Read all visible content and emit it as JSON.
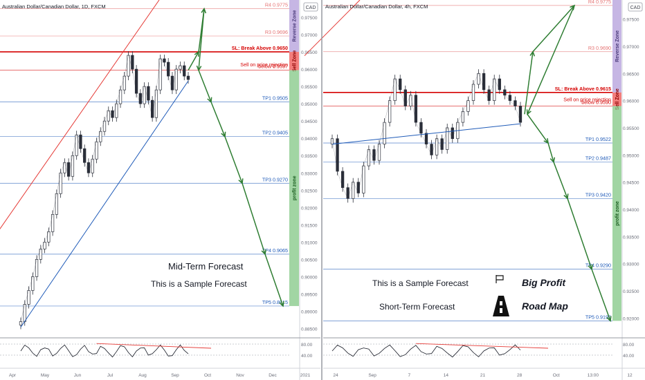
{
  "chart_data": [
    {
      "type": "line",
      "title": "Australian Dollar/Canadian Dollar, 1D, FXCM",
      "currency_badge": "CAD",
      "x_tick_labels": [
        "Apr",
        "May",
        "Jun",
        "Jul",
        "Aug",
        "Sep",
        "Oct",
        "Nov",
        "Dec",
        "2021"
      ],
      "y_tick_labels": [
        "0.97500",
        "0.97000",
        "0.96500",
        "0.96000",
        "0.95500",
        "0.95000",
        "0.94500",
        "0.94000",
        "0.93500",
        "0.93000",
        "0.92500",
        "0.92000",
        "0.91500",
        "0.91000",
        "0.90500",
        "0.90000",
        "0.89500",
        "0.89000",
        "0.88500"
      ],
      "ylim": [
        0.8825,
        0.98
      ],
      "levels": [
        {
          "label": "R4 0.9775",
          "value": 0.9775,
          "color": "#e57373"
        },
        {
          "label": "R3 0.9696",
          "value": 0.9696,
          "color": "#e57373"
        },
        {
          "label": "SL: Break Above 0.9650",
          "value": 0.965,
          "color": "#d50000"
        },
        {
          "label": "Sell on price rejection",
          "value": 0.961,
          "color": "#d50000"
        },
        {
          "label": "below 0.9597",
          "value": 0.9597,
          "color": "#d50000"
        },
        {
          "label": "TP1 0.9505",
          "value": 0.9505,
          "color": "#1e5ab8"
        },
        {
          "label": "TP2 0.9405",
          "value": 0.9405,
          "color": "#1e5ab8"
        },
        {
          "label": "TP3 0.9270",
          "value": 0.927,
          "color": "#1e5ab8"
        },
        {
          "label": "TP4 0.9065",
          "value": 0.9065,
          "color": "#1e5ab8"
        },
        {
          "label": "TP5 0.8915",
          "value": 0.8915,
          "color": "#1e5ab8"
        }
      ],
      "zones": [
        {
          "label": "Reverse Zone",
          "from": 0.965,
          "to": 0.98,
          "color": "#b39ddb"
        },
        {
          "label": "Sell Zone",
          "from": 0.9597,
          "to": 0.965,
          "color": "#ef5350"
        },
        {
          "label": "profit zone",
          "from": 0.8915,
          "to": 0.9597,
          "color": "#81c784"
        }
      ],
      "annotations": [
        "Mid-Term Forecast",
        "This is a Sample Forecast"
      ],
      "close_series": [
        0.887,
        0.892,
        0.896,
        0.9,
        0.905,
        0.908,
        0.91,
        0.913,
        0.918,
        0.924,
        0.93,
        0.933,
        0.929,
        0.935,
        0.941,
        0.937,
        0.933,
        0.93,
        0.934,
        0.939,
        0.942,
        0.945,
        0.948,
        0.946,
        0.95,
        0.954,
        0.958,
        0.964,
        0.96,
        0.953,
        0.95,
        0.955,
        0.951,
        0.946,
        0.954,
        0.963,
        0.962,
        0.958,
        0.954,
        0.96,
        0.961,
        0.958,
        0.957
      ],
      "forecast_path": [
        0.9597,
        0.965,
        0.9775,
        0.9597,
        0.9505,
        0.9405,
        0.927,
        0.9065,
        0.8915
      ],
      "oscillator": {
        "ticks": [
          "80.00",
          "40.00"
        ]
      }
    },
    {
      "type": "line",
      "title": "Australian Dollar/Canadian Dollar, 4h, FXCM",
      "currency_badge": "CAD",
      "x_tick_labels": [
        "24",
        "Sep",
        "7",
        "14",
        "21",
        "28",
        "Oct",
        "13:00",
        "12"
      ],
      "y_tick_labels": [
        "0.97500",
        "0.97000",
        "0.96500",
        "0.96000",
        "0.95500",
        "0.95000",
        "0.94500",
        "0.94000",
        "0.93500",
        "0.93000",
        "0.92500",
        "0.92000"
      ],
      "ylim": [
        0.9165,
        0.9785
      ],
      "levels": [
        {
          "label": "R4 0.9775",
          "value": 0.9775,
          "color": "#e57373"
        },
        {
          "label": "R3 0.9690",
          "value": 0.969,
          "color": "#e57373"
        },
        {
          "label": "SL: Break Above 0.9615",
          "value": 0.9615,
          "color": "#d50000"
        },
        {
          "label": "Sell on price rejection",
          "value": 0.96,
          "color": "#d50000"
        },
        {
          "label": "below 0.9590",
          "value": 0.959,
          "color": "#d50000"
        },
        {
          "label": "TP1 0.9522",
          "value": 0.9522,
          "color": "#1e5ab8"
        },
        {
          "label": "TP2 0.9487",
          "value": 0.9487,
          "color": "#1e5ab8"
        },
        {
          "label": "TP3 0.9420",
          "value": 0.942,
          "color": "#1e5ab8"
        },
        {
          "label": "TP4 0.9290",
          "value": 0.929,
          "color": "#1e5ab8"
        },
        {
          "label": "TP5 0.9195",
          "value": 0.9195,
          "color": "#1e5ab8"
        }
      ],
      "zones": [
        {
          "label": "Reverse Zone",
          "from": 0.9615,
          "to": 0.9785,
          "color": "#b39ddb"
        },
        {
          "label": "Sell Zone",
          "from": 0.959,
          "to": 0.9615,
          "color": "#ef5350"
        },
        {
          "label": "profit zone",
          "from": 0.9195,
          "to": 0.959,
          "color": "#81c784"
        }
      ],
      "annotations": [
        "This is a Sample Forecast",
        "Short-Term Forecast",
        "Big Profit",
        "Road Map"
      ],
      "close_series": [
        0.953,
        0.947,
        0.944,
        0.942,
        0.945,
        0.943,
        0.948,
        0.951,
        0.949,
        0.952,
        0.956,
        0.96,
        0.964,
        0.962,
        0.959,
        0.961,
        0.956,
        0.954,
        0.952,
        0.95,
        0.953,
        0.951,
        0.955,
        0.953,
        0.956,
        0.958,
        0.96,
        0.963,
        0.965,
        0.962,
        0.96,
        0.964,
        0.962,
        0.961,
        0.96,
        0.959,
        0.956
      ],
      "forecast_path": [
        0.9575,
        0.969,
        0.9775,
        0.9575,
        0.9522,
        0.9487,
        0.942,
        0.929,
        0.9195
      ],
      "oscillator": {
        "ticks": [
          "80.00",
          "40.00"
        ]
      }
    }
  ]
}
